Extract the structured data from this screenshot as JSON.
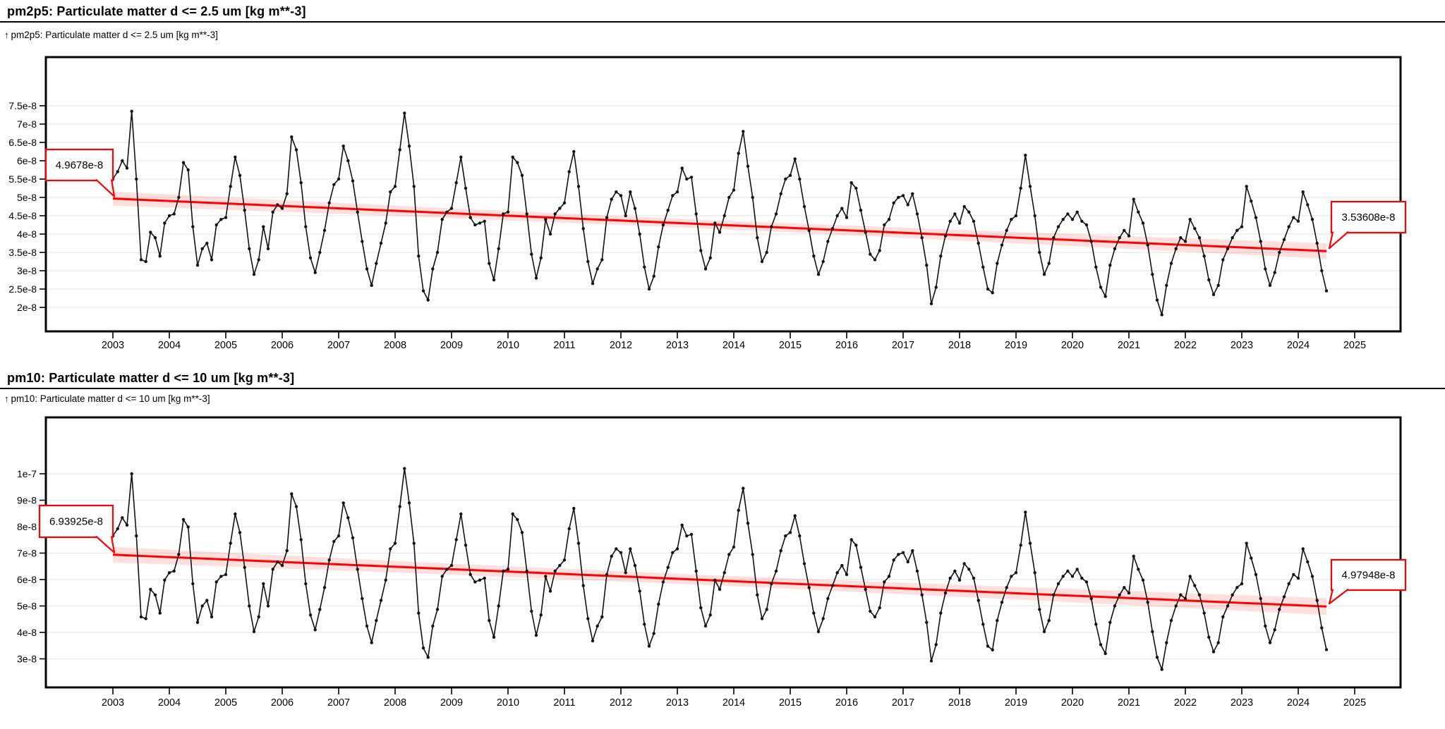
{
  "ui": {
    "up_arrow": "↑"
  },
  "colors": {
    "trend": "#ff0000",
    "band": "rgba(255,0,0,0.13)",
    "series": "#111111",
    "grid": "#e8e8e8",
    "axis": "#000000",
    "callout_bg": "#ffffff"
  },
  "chart_data": [
    {
      "type": "line",
      "id": "pm2p5",
      "title": "pm2p5: Particulate matter d <= 2.5 um [kg m**-3]",
      "axis_label": "pm2p5: Particulate matter d <= 2.5 um [kg m**-3]",
      "xlabel": "",
      "ylabel": "kg m**-3",
      "x_monthly_start": "2003-01",
      "x_ticks": [
        2003,
        2004,
        2005,
        2006,
        2007,
        2008,
        2009,
        2010,
        2011,
        2012,
        2013,
        2014,
        2015,
        2016,
        2017,
        2018,
        2019,
        2020,
        2021,
        2022,
        2023,
        2024,
        2025
      ],
      "xlim": [
        2001.8,
        2025.8
      ],
      "ylim": [
        1.35e-08,
        8.83e-08
      ],
      "y_ticks_e8": [
        2,
        2.5,
        3,
        3.5,
        4,
        4.5,
        5,
        5.5,
        6,
        6.5,
        7,
        7.5
      ],
      "y_tick_labels": [
        "2e-8",
        "2.5e-8",
        "3e-8",
        "3.5e-8",
        "4e-8",
        "4.5e-8",
        "5e-8",
        "5.5e-8",
        "6e-8",
        "6.5e-8",
        "7e-8",
        "7.5e-8"
      ],
      "grid": "horizontal-only",
      "unit_scale_e8": 1e-08,
      "values_e8": [
        5.5,
        5.7,
        6.0,
        5.8,
        7.35,
        5.5,
        3.3,
        3.25,
        4.05,
        3.9,
        3.4,
        4.3,
        4.5,
        4.55,
        5.0,
        5.95,
        5.75,
        4.2,
        3.15,
        3.6,
        3.75,
        3.3,
        4.25,
        4.4,
        4.45,
        5.3,
        6.1,
        5.6,
        4.65,
        3.6,
        2.9,
        3.3,
        4.2,
        3.6,
        4.6,
        4.8,
        4.7,
        5.1,
        6.65,
        6.3,
        5.4,
        4.2,
        3.35,
        2.95,
        3.5,
        4.1,
        4.85,
        5.35,
        5.5,
        6.4,
        6.0,
        5.45,
        4.6,
        3.8,
        3.05,
        2.6,
        3.2,
        3.75,
        4.3,
        5.15,
        5.3,
        6.3,
        7.3,
        6.4,
        5.3,
        3.4,
        2.45,
        2.2,
        3.05,
        3.5,
        4.4,
        4.6,
        4.7,
        5.4,
        6.1,
        5.25,
        4.45,
        4.25,
        4.3,
        4.35,
        3.2,
        2.75,
        3.6,
        4.55,
        4.6,
        6.1,
        5.95,
        5.6,
        4.55,
        3.45,
        2.8,
        3.35,
        4.4,
        4.0,
        4.55,
        4.7,
        4.85,
        5.7,
        6.25,
        5.3,
        4.15,
        3.25,
        2.65,
        3.05,
        3.3,
        4.45,
        4.95,
        5.15,
        5.05,
        4.5,
        5.15,
        4.7,
        4.0,
        3.1,
        2.5,
        2.85,
        3.65,
        4.25,
        4.65,
        5.05,
        5.15,
        5.8,
        5.5,
        5.55,
        4.55,
        3.55,
        3.05,
        3.35,
        4.3,
        4.05,
        4.5,
        5.0,
        5.2,
        6.2,
        6.8,
        5.85,
        5.0,
        3.9,
        3.25,
        3.5,
        4.2,
        4.55,
        5.1,
        5.5,
        5.6,
        6.05,
        5.5,
        4.75,
        4.1,
        3.4,
        2.9,
        3.25,
        3.8,
        4.15,
        4.5,
        4.7,
        4.45,
        5.4,
        5.25,
        4.65,
        4.05,
        3.45,
        3.3,
        3.55,
        4.25,
        4.4,
        4.85,
        5.0,
        5.05,
        4.8,
        5.1,
        4.55,
        3.9,
        3.15,
        2.1,
        2.55,
        3.4,
        3.95,
        4.35,
        4.55,
        4.3,
        4.75,
        4.6,
        4.35,
        3.75,
        3.1,
        2.5,
        2.4,
        3.2,
        3.7,
        4.1,
        4.4,
        4.5,
        5.25,
        6.15,
        5.3,
        4.5,
        3.5,
        2.9,
        3.2,
        3.9,
        4.2,
        4.4,
        4.55,
        4.4,
        4.6,
        4.35,
        4.25,
        3.8,
        3.1,
        2.55,
        2.3,
        3.15,
        3.6,
        3.9,
        4.1,
        3.95,
        4.95,
        4.6,
        4.3,
        3.7,
        2.9,
        2.2,
        1.8,
        2.6,
        3.2,
        3.6,
        3.9,
        3.8,
        4.4,
        4.15,
        3.9,
        3.4,
        2.75,
        2.35,
        2.6,
        3.3,
        3.6,
        3.9,
        4.1,
        4.2,
        5.3,
        4.9,
        4.45,
        3.8,
        3.05,
        2.6,
        2.95,
        3.5,
        3.85,
        4.2,
        4.45,
        4.35,
        5.15,
        4.8,
        4.4,
        3.75,
        3.0,
        2.45
      ],
      "trend": {
        "type": "linear",
        "start_year": 2003.0,
        "end_year": 2024.5,
        "start_value_e8": 4.9678,
        "end_value_e8": 3.53608,
        "start_label": "4.9678e-8",
        "end_label": "3.53608e-8"
      }
    },
    {
      "type": "line",
      "id": "pm10",
      "title": "pm10: Particulate matter d <= 10 um [kg m**-3]",
      "axis_label": "pm10: Particulate matter d <= 10 um [kg m**-3]",
      "xlabel": "",
      "ylabel": "kg m**-3",
      "x_monthly_start": "2003-01",
      "x_ticks": [
        2003,
        2004,
        2005,
        2006,
        2007,
        2008,
        2009,
        2010,
        2011,
        2012,
        2013,
        2014,
        2015,
        2016,
        2017,
        2018,
        2019,
        2020,
        2021,
        2022,
        2023,
        2024,
        2025
      ],
      "xlim": [
        2001.8,
        2025.8
      ],
      "ylim": [
        1.92e-08,
        1.213e-07
      ],
      "y_ticks_e8": [
        3,
        4,
        5,
        6,
        7,
        8,
        9,
        10
      ],
      "y_tick_labels": [
        "3e-8",
        "4e-8",
        "5e-8",
        "6e-8",
        "7e-8",
        "8e-8",
        "9e-8",
        "1e-7"
      ],
      "grid": "horizontal-only",
      "unit_scale_e8": 1e-08,
      "values_e8": [
        7.65,
        7.92,
        8.34,
        8.06,
        10.0,
        7.65,
        4.59,
        4.52,
        5.63,
        5.42,
        4.73,
        5.98,
        6.26,
        6.32,
        6.95,
        8.27,
        7.99,
        5.84,
        4.38,
        5.0,
        5.21,
        4.59,
        5.91,
        6.12,
        6.19,
        7.37,
        8.48,
        7.78,
        6.46,
        5.0,
        4.03,
        4.59,
        5.84,
        5.0,
        6.39,
        6.67,
        6.53,
        7.09,
        9.24,
        8.76,
        7.51,
        5.84,
        4.66,
        4.1,
        4.87,
        5.7,
        6.74,
        7.44,
        7.65,
        8.9,
        8.34,
        7.58,
        6.39,
        5.28,
        4.24,
        3.61,
        4.45,
        5.21,
        5.98,
        7.16,
        7.37,
        8.76,
        10.2,
        8.9,
        7.37,
        4.73,
        3.41,
        3.06,
        4.24,
        4.87,
        6.12,
        6.39,
        6.53,
        7.51,
        8.48,
        7.3,
        6.19,
        5.91,
        5.98,
        6.05,
        4.45,
        3.82,
        5.0,
        6.32,
        6.39,
        8.48,
        8.27,
        7.78,
        6.32,
        4.8,
        3.89,
        4.66,
        6.12,
        5.56,
        6.32,
        6.53,
        6.74,
        7.92,
        8.69,
        7.37,
        5.77,
        4.52,
        3.68,
        4.24,
        4.59,
        6.19,
        6.88,
        7.16,
        7.02,
        6.26,
        7.16,
        6.53,
        5.56,
        4.31,
        3.48,
        3.96,
        5.07,
        5.91,
        6.46,
        7.02,
        7.16,
        8.06,
        7.65,
        7.71,
        6.32,
        4.93,
        4.24,
        4.66,
        5.98,
        5.63,
        6.26,
        6.95,
        7.23,
        8.62,
        9.45,
        8.13,
        6.95,
        5.42,
        4.52,
        4.87,
        5.84,
        6.32,
        7.09,
        7.65,
        7.78,
        8.41,
        7.65,
        6.6,
        5.7,
        4.73,
        4.03,
        4.52,
        5.28,
        5.77,
        6.26,
        6.53,
        6.19,
        7.51,
        7.3,
        6.46,
        5.63,
        4.8,
        4.59,
        4.93,
        5.91,
        6.12,
        6.74,
        6.95,
        7.02,
        6.67,
        7.09,
        6.32,
        5.42,
        4.38,
        2.92,
        3.54,
        4.73,
        5.49,
        6.05,
        6.32,
        5.98,
        6.6,
        6.39,
        6.05,
        5.21,
        4.31,
        3.48,
        3.34,
        4.45,
        5.14,
        5.7,
        6.12,
        6.26,
        7.3,
        8.55,
        7.37,
        6.26,
        4.87,
        4.03,
        4.45,
        5.42,
        5.84,
        6.12,
        6.32,
        6.12,
        6.39,
        6.05,
        5.91,
        5.28,
        4.31,
        3.54,
        3.2,
        4.38,
        5.0,
        5.42,
        5.7,
        5.49,
        6.88,
        6.39,
        5.98,
        5.14,
        4.03,
        3.06,
        2.6,
        3.61,
        4.45,
        5.0,
        5.42,
        5.28,
        6.12,
        5.77,
        5.42,
        4.73,
        3.82,
        3.27,
        3.61,
        4.59,
        5.0,
        5.42,
        5.7,
        5.84,
        7.37,
        6.81,
        6.19,
        5.28,
        4.24,
        3.61,
        4.1,
        4.87,
        5.35,
        5.84,
        6.19,
        6.05,
        7.16,
        6.67,
        6.12,
        5.21,
        4.17,
        3.35
      ],
      "trend": {
        "type": "linear",
        "start_year": 2003.0,
        "end_year": 2024.5,
        "start_value_e8": 6.93925,
        "end_value_e8": 4.97948,
        "start_label": "6.93925e-8",
        "end_label": "4.97948e-8"
      }
    }
  ]
}
